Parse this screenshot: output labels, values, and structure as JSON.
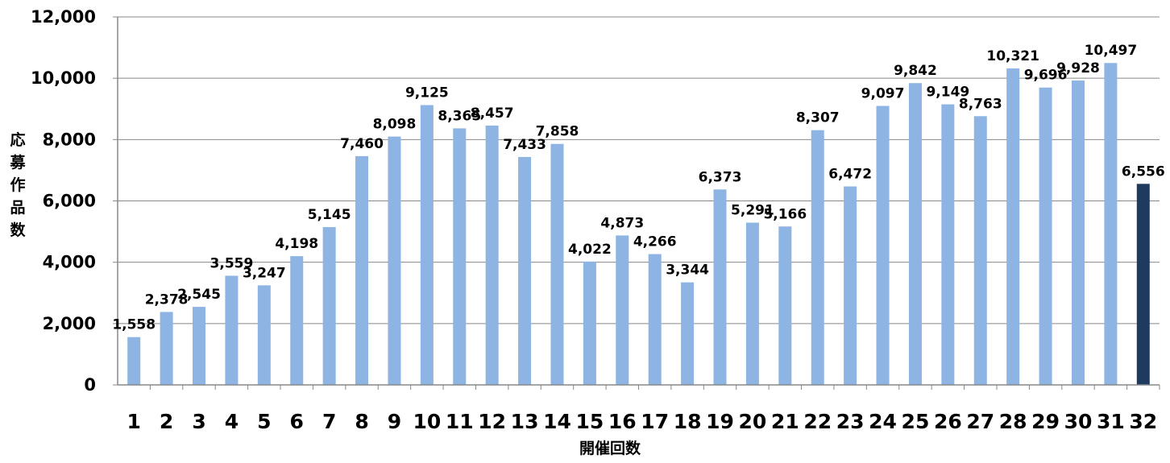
{
  "chart_data": {
    "type": "bar",
    "title": "",
    "xlabel": "開催回数",
    "ylabel": "応募作品数",
    "ylim": [
      0,
      12000
    ],
    "yticks": [
      "0",
      "2,000",
      "4,000",
      "6,000",
      "8,000",
      "10,000",
      "12,000"
    ],
    "grid": true,
    "categories": [
      "1",
      "2",
      "3",
      "4",
      "5",
      "6",
      "7",
      "8",
      "9",
      "10",
      "11",
      "12",
      "13",
      "14",
      "15",
      "16",
      "17",
      "18",
      "19",
      "20",
      "21",
      "22",
      "23",
      "24",
      "25",
      "26",
      "27",
      "28",
      "29",
      "30",
      "31",
      "32"
    ],
    "values": [
      1558,
      2378,
      2545,
      3559,
      3247,
      4198,
      5145,
      7460,
      8098,
      9125,
      8365,
      8457,
      7433,
      7858,
      4022,
      4873,
      4266,
      3344,
      6373,
      5291,
      5166,
      8307,
      6472,
      9097,
      9842,
      9149,
      8763,
      10321,
      9696,
      9928,
      10497,
      6556
    ],
    "data_labels": [
      "1,558",
      "2,378",
      "2,545",
      "3,559",
      "3,247",
      "4,198",
      "5,145",
      "7,460",
      "8,098",
      "9,125",
      "8,365",
      "8,457",
      "7,433",
      "7,858",
      "4,022",
      "4,873",
      "4,266",
      "3,344",
      "6,373",
      "5,291",
      "5,166",
      "8,307",
      "6,472",
      "9,097",
      "9,842",
      "9,149",
      "8,763",
      "10,321",
      "9,696",
      "9,928",
      "10,497",
      "6,556"
    ],
    "colors": {
      "bar": "#8db4e2",
      "highlight": "#1f3a5f",
      "grid": "#888888",
      "axis": "#888888"
    },
    "highlight_index": 31
  }
}
